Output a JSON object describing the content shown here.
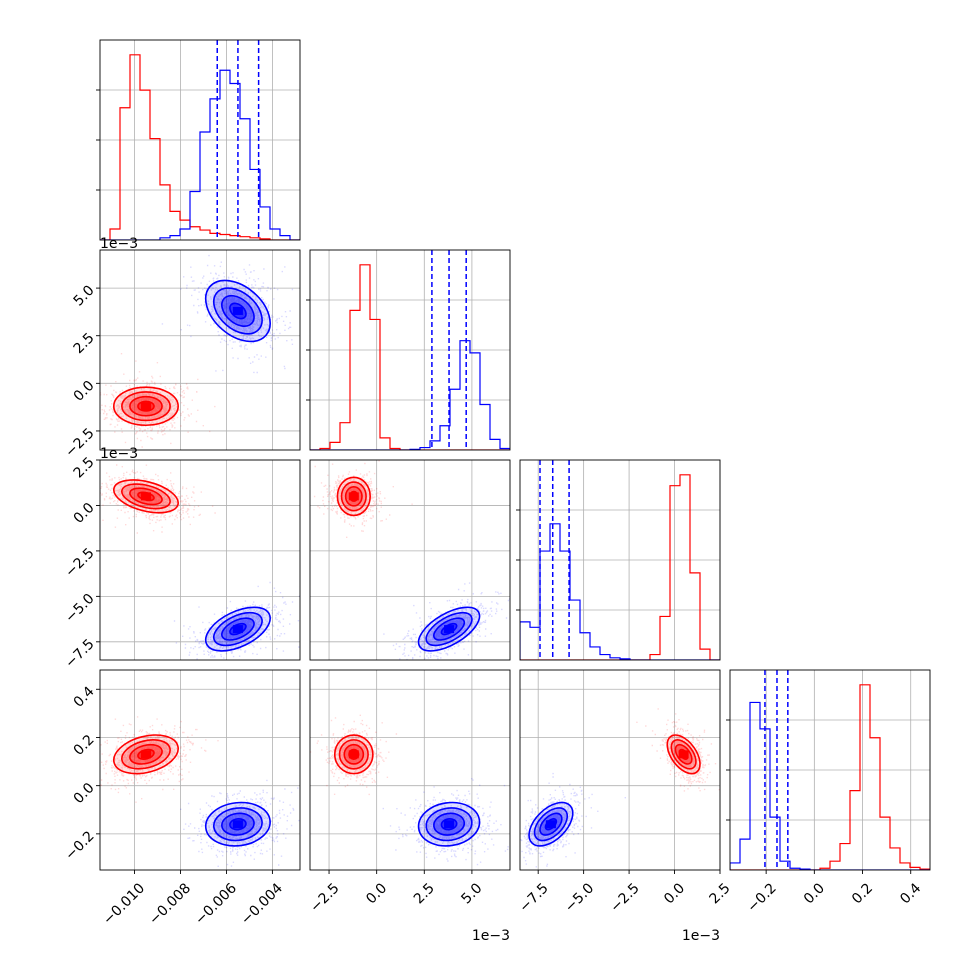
{
  "chart_data": {
    "type": "corner",
    "title": "",
    "parameters": [
      {
        "range": [
          -0.0115,
          -0.0028
        ],
        "ticks": [
          -0.01,
          -0.008,
          -0.006,
          -0.004
        ],
        "tick_labels": [
          "−0.010",
          "−0.008",
          "−0.006",
          "−0.004"
        ],
        "offset_label": ""
      },
      {
        "range": [
          -3.5,
          7.0
        ],
        "ticks": [
          -2.5,
          0.0,
          2.5,
          5.0
        ],
        "tick_labels": [
          "−2.5",
          "0.0",
          "2.5",
          "5.0"
        ],
        "offset_label": "1e−3"
      },
      {
        "range": [
          -8.5,
          2.5
        ],
        "ticks": [
          -7.5,
          -5.0,
          -2.5,
          0.0,
          2.5
        ],
        "tick_labels": [
          "−7.5",
          "−5.0",
          "−2.5",
          "0.0",
          "2.5"
        ],
        "offset_label": "1e−3"
      },
      {
        "range": [
          -0.35,
          0.48
        ],
        "ticks": [
          -0.2,
          0.0,
          0.2,
          0.4
        ],
        "tick_labels": [
          "−0.2",
          "0.0",
          "0.2",
          "0.4"
        ],
        "offset_label": ""
      }
    ],
    "series": [
      {
        "color": "#ff0000",
        "means": [
          -0.0095,
          -1.2,
          0.5,
          0.13
        ],
        "sds": [
          0.0007,
          0.5,
          0.45,
          0.04
        ],
        "hists": [
          [
            0,
            0.5,
            6.0,
            8.4,
            6.8,
            4.6,
            2.5,
            1.3,
            0.9,
            0.6,
            0.45,
            0.3,
            0.25,
            0.2,
            0.15,
            0.1,
            0.05,
            0.0,
            0.0,
            0.0
          ],
          [
            0,
            0.05,
            0.25,
            0.9,
            4.6,
            6.1,
            4.3,
            0.4,
            0.05,
            0,
            0,
            0,
            0,
            0,
            0,
            0,
            0,
            0,
            0,
            0
          ],
          [
            0,
            0,
            0,
            0,
            0,
            0,
            0,
            0,
            0,
            0,
            0,
            0,
            0,
            0.05,
            0.4,
            1.6,
            1.7,
            0.8,
            0.1,
            0.0
          ],
          [
            0,
            0,
            0,
            0,
            0,
            0,
            0,
            0,
            0,
            0.02,
            0.1,
            0.3,
            0.9,
            2.1,
            1.5,
            0.6,
            0.25,
            0.08,
            0.03,
            0.01
          ]
        ]
      },
      {
        "color": "#0000ff",
        "means": [
          -0.0055,
          3.8,
          -6.8,
          -0.16
        ],
        "sds": [
          0.0007,
          0.8,
          0.6,
          0.045
        ],
        "hists": [
          [
            0,
            0,
            0,
            0,
            0,
            0,
            0.1,
            0.2,
            0.5,
            2.2,
            4.9,
            6.4,
            7.7,
            7.1,
            5.5,
            3.2,
            1.5,
            0.5,
            0.2,
            0.0
          ],
          [
            0,
            0,
            0,
            0,
            0,
            0,
            0,
            0,
            0,
            0,
            0.02,
            0.08,
            0.3,
            0.8,
            2.0,
            3.6,
            3.2,
            1.5,
            0.35,
            0.05
          ],
          [
            0.35,
            0.3,
            1.0,
            1.25,
            1.0,
            0.55,
            0.25,
            0.12,
            0.05,
            0.02,
            0.01,
            0,
            0,
            0,
            0,
            0,
            0,
            0,
            0,
            0
          ],
          [
            0.08,
            0.35,
            1.9,
            1.6,
            0.6,
            0.1,
            0.02,
            0.01,
            0,
            0,
            0,
            0,
            0,
            0,
            0,
            0,
            0,
            0,
            0,
            0
          ]
        ],
        "quantiles": [
          [
            -0.0064,
            -0.0055,
            -0.0046
          ],
          [
            2.9,
            3.8,
            4.7
          ],
          [
            -7.4,
            -6.7,
            -5.8
          ],
          [
            -0.205,
            -0.155,
            -0.11
          ]
        ]
      }
    ],
    "pair_correlations": {
      "1,0": [
        0.0,
        -0.4
      ],
      "2,0": [
        -0.4,
        0.5
      ],
      "2,1": [
        0.0,
        0.6
      ],
      "3,0": [
        0.3,
        0.1
      ],
      "3,1": [
        0.0,
        0.1
      ],
      "3,2": [
        -0.5,
        0.5
      ]
    },
    "grid": true,
    "legend": "none"
  }
}
